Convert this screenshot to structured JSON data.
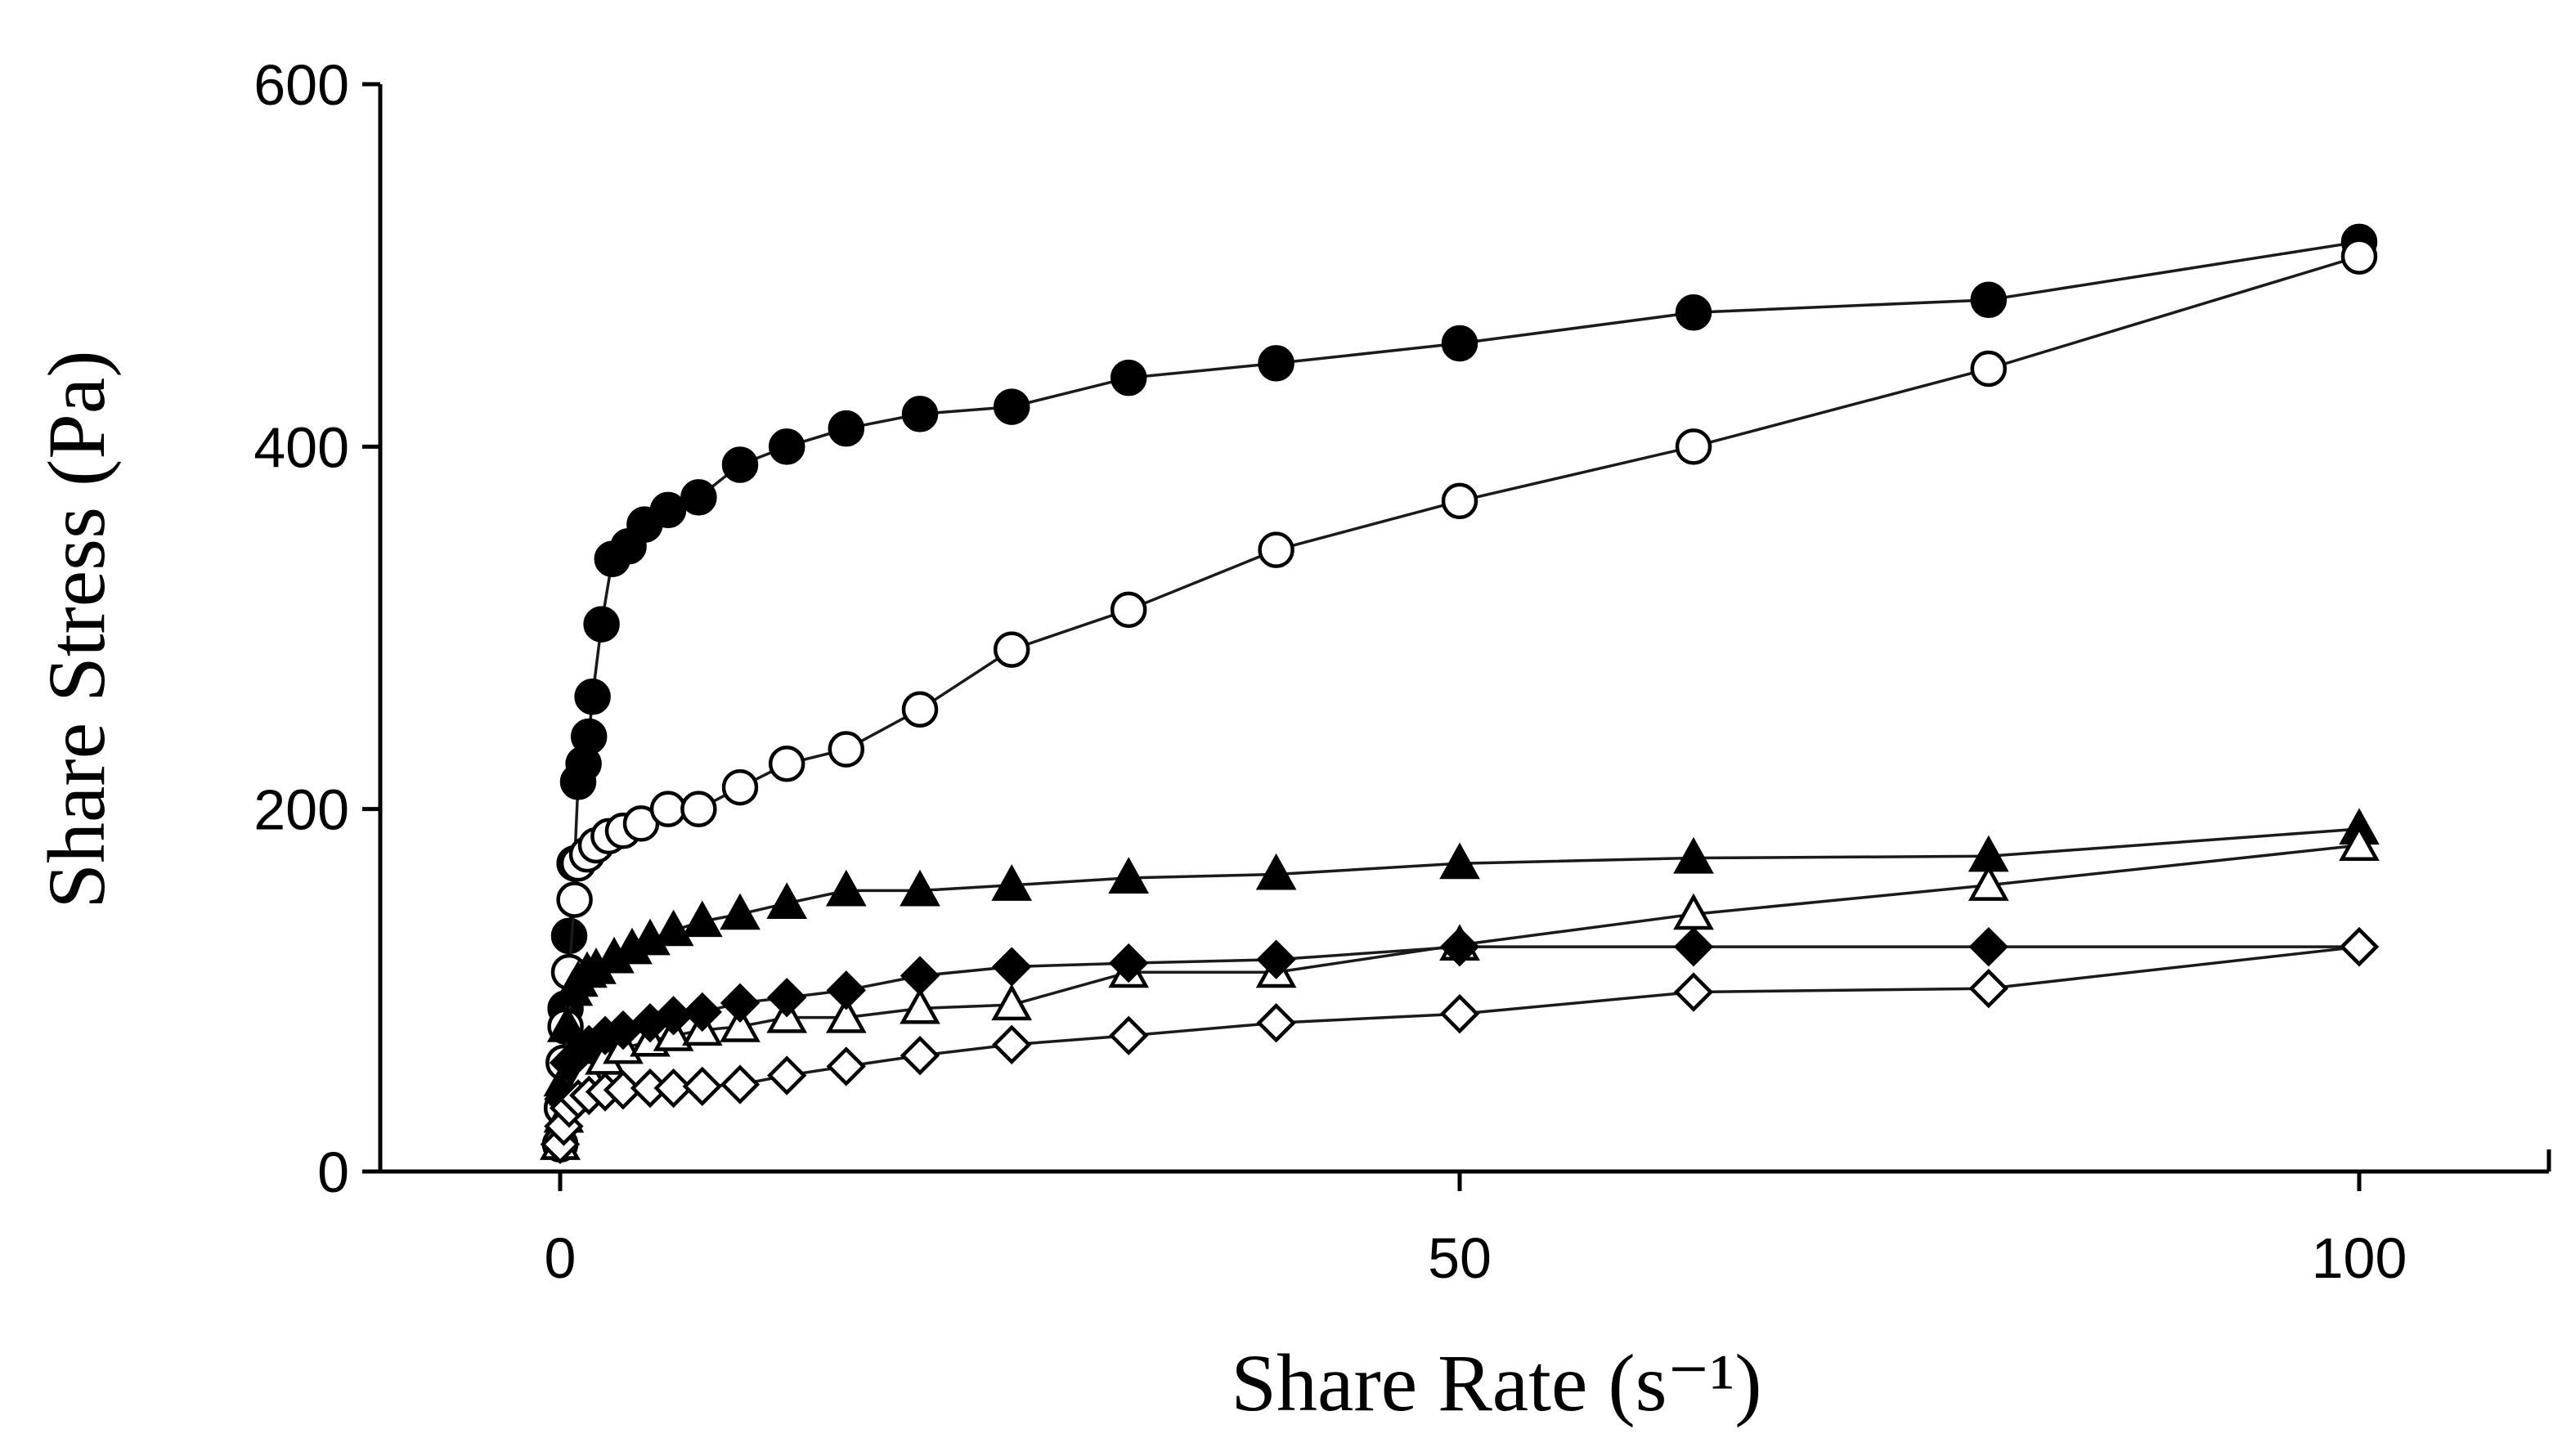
{
  "chart_data": {
    "type": "scatter",
    "xlabel": "Share Rate (s⁻¹)",
    "ylabel": "Share Stress (Pa)",
    "xlim": [
      -10,
      110
    ],
    "ylim": [
      0,
      600
    ],
    "x_ticks": [
      0,
      50,
      100
    ],
    "y_ticks": [
      0,
      200,
      400,
      600
    ],
    "grid": false,
    "series": [
      {
        "marker": "circle",
        "filled": true,
        "points": [
          [
            0,
            15
          ],
          [
            0.1,
            35
          ],
          [
            0.2,
            60
          ],
          [
            0.3,
            90
          ],
          [
            0.5,
            130
          ],
          [
            0.8,
            170
          ],
          [
            1.0,
            215
          ],
          [
            1.3,
            225
          ],
          [
            1.6,
            240
          ],
          [
            1.8,
            262
          ],
          [
            2.3,
            302
          ],
          [
            2.9,
            338
          ],
          [
            3.8,
            345
          ],
          [
            4.7,
            357
          ],
          [
            6.0,
            365
          ],
          [
            7.7,
            372
          ],
          [
            10,
            390
          ],
          [
            12.6,
            400
          ],
          [
            15.9,
            410
          ],
          [
            20,
            418
          ],
          [
            25.1,
            422
          ],
          [
            31.6,
            438
          ],
          [
            39.8,
            446
          ],
          [
            50,
            457
          ],
          [
            63,
            474
          ],
          [
            79.4,
            481
          ],
          [
            100,
            513
          ]
        ]
      },
      {
        "marker": "circle",
        "filled": false,
        "points": [
          [
            0,
            15
          ],
          [
            0.1,
            35
          ],
          [
            0.2,
            60
          ],
          [
            0.3,
            80
          ],
          [
            0.5,
            110
          ],
          [
            0.8,
            150
          ],
          [
            1.0,
            170
          ],
          [
            1.5,
            175
          ],
          [
            2.0,
            180
          ],
          [
            2.7,
            185
          ],
          [
            3.5,
            188
          ],
          [
            4.5,
            192
          ],
          [
            6.0,
            200
          ],
          [
            7.7,
            200
          ],
          [
            10,
            212
          ],
          [
            12.6,
            225
          ],
          [
            15.9,
            233
          ],
          [
            20,
            255
          ],
          [
            25.1,
            288
          ],
          [
            31.6,
            310
          ],
          [
            39.8,
            343
          ],
          [
            50,
            370
          ],
          [
            63,
            400
          ],
          [
            79.4,
            443
          ],
          [
            100,
            505
          ]
        ]
      },
      {
        "marker": "triangle",
        "filled": true,
        "points": [
          [
            0,
            15
          ],
          [
            0.2,
            50
          ],
          [
            0.4,
            80
          ],
          [
            0.7,
            100
          ],
          [
            1.0,
            105
          ],
          [
            1.5,
            110
          ],
          [
            2.0,
            112
          ],
          [
            3.0,
            118
          ],
          [
            4.0,
            123
          ],
          [
            5.0,
            128
          ],
          [
            6.3,
            133
          ],
          [
            7.9,
            138
          ],
          [
            10,
            142
          ],
          [
            12.6,
            148
          ],
          [
            15.9,
            155
          ],
          [
            20,
            155
          ],
          [
            25.1,
            158
          ],
          [
            31.6,
            162
          ],
          [
            39.8,
            164
          ],
          [
            50,
            170
          ],
          [
            63,
            173
          ],
          [
            79.4,
            174
          ],
          [
            100,
            189
          ]
        ]
      },
      {
        "marker": "triangle",
        "filled": false,
        "points": [
          [
            0,
            15
          ],
          [
            0.2,
            30
          ],
          [
            0.5,
            45
          ],
          [
            1.0,
            50
          ],
          [
            1.5,
            55
          ],
          [
            2.5,
            62
          ],
          [
            3.5,
            68
          ],
          [
            5.0,
            72
          ],
          [
            6.3,
            75
          ],
          [
            7.9,
            78
          ],
          [
            10,
            80
          ],
          [
            12.6,
            85
          ],
          [
            15.9,
            85
          ],
          [
            20,
            90
          ],
          [
            25.1,
            92
          ],
          [
            31.6,
            110
          ],
          [
            39.8,
            110
          ],
          [
            50,
            125
          ],
          [
            63,
            142
          ],
          [
            79.4,
            158
          ],
          [
            100,
            180
          ]
        ]
      },
      {
        "marker": "diamond",
        "filled": true,
        "points": [
          [
            0,
            15
          ],
          [
            0.2,
            40
          ],
          [
            0.5,
            60
          ],
          [
            1.0,
            65
          ],
          [
            1.6,
            70
          ],
          [
            2.5,
            75
          ],
          [
            3.5,
            78
          ],
          [
            5.0,
            82
          ],
          [
            6.3,
            86
          ],
          [
            7.9,
            88
          ],
          [
            10,
            93
          ],
          [
            12.6,
            96
          ],
          [
            15.9,
            100
          ],
          [
            20,
            108
          ],
          [
            25.1,
            113
          ],
          [
            31.6,
            115
          ],
          [
            39.8,
            117
          ],
          [
            50,
            124
          ],
          [
            63,
            124
          ],
          [
            79.4,
            124
          ],
          [
            100,
            124
          ]
        ]
      },
      {
        "marker": "diamond",
        "filled": false,
        "points": [
          [
            0,
            15
          ],
          [
            0.2,
            25
          ],
          [
            0.5,
            35
          ],
          [
            1.0,
            40
          ],
          [
            1.6,
            42
          ],
          [
            2.5,
            44
          ],
          [
            3.5,
            45
          ],
          [
            5.0,
            46
          ],
          [
            6.3,
            46
          ],
          [
            7.9,
            47
          ],
          [
            10,
            48
          ],
          [
            12.6,
            53
          ],
          [
            15.9,
            58
          ],
          [
            20,
            64
          ],
          [
            25.1,
            70
          ],
          [
            31.6,
            75
          ],
          [
            39.8,
            82
          ],
          [
            50,
            87
          ],
          [
            63,
            99
          ],
          [
            79.4,
            101
          ],
          [
            100,
            124
          ]
        ]
      }
    ]
  }
}
